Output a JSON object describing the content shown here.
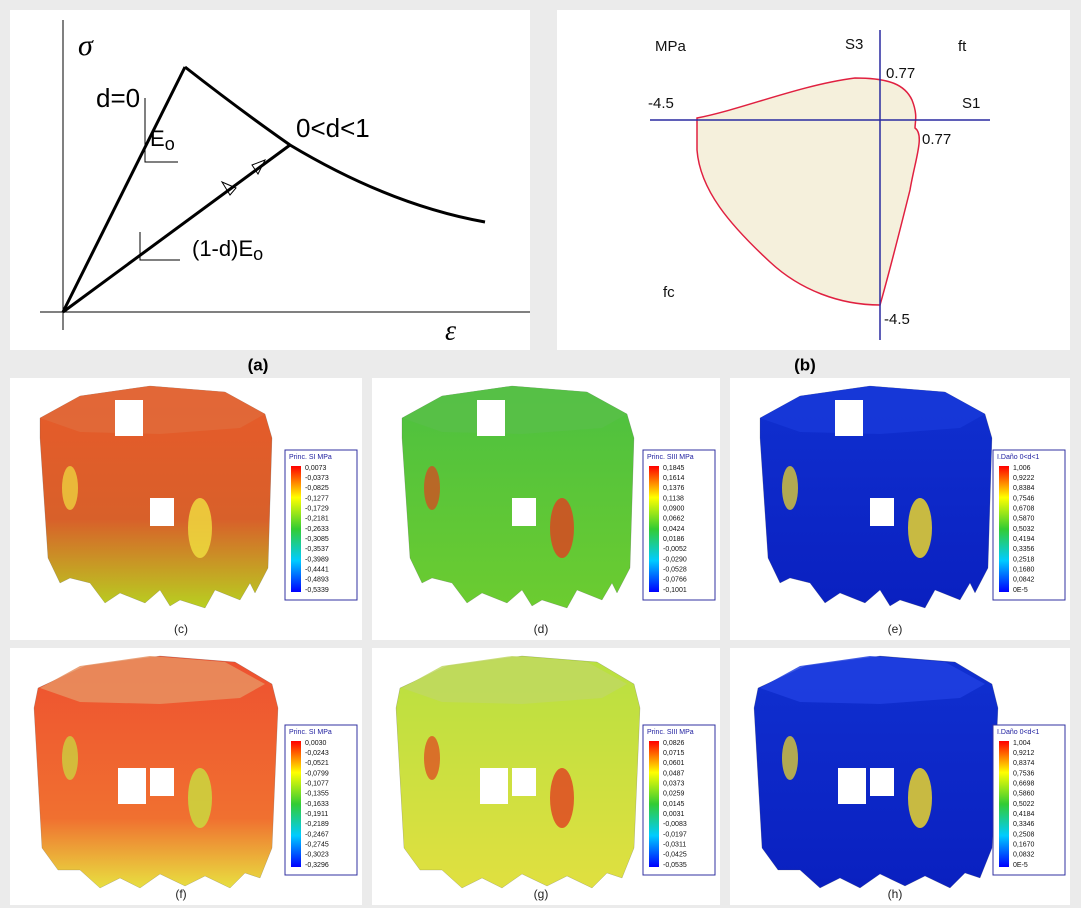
{
  "panel_a": {
    "caption": "(a)",
    "stress_symbol": "σ",
    "strain_symbol": "ε",
    "undamaged": "d=0",
    "modulus": "E",
    "modulus_sub": "o",
    "damaged": "0<d<1",
    "damaged_modulus": "(1-d)E",
    "damaged_modulus_sub": "o"
  },
  "panel_b": {
    "caption": "(b)",
    "unit": "MPa",
    "axis_vertical": "S3",
    "axis_horizontal": "S1",
    "tension_label": "ft",
    "compression_label": "fc",
    "tension_vertical": "0.77",
    "tension_horizontal": "0.77",
    "compression_horizontal": "-4.5",
    "compression_vertical": "-4.5"
  },
  "plots": [
    {
      "caption": "(c)",
      "legend_title": "Princ. SI MPa",
      "legend_values": [
        "0,0073",
        "-0,0373",
        "-0,0825",
        "-0,1277",
        "-0,1729",
        "-0,2181",
        "-0,2633",
        "-0,3085",
        "-0,3537",
        "-0,3989",
        "-0,4441",
        "-0,4893",
        "-0,5339"
      ]
    },
    {
      "caption": "(d)",
      "legend_title": "Princ. SIII MPa",
      "legend_values": [
        "0,1845",
        "0,1614",
        "0,1376",
        "0,1138",
        "0,0900",
        "0,0662",
        "0,0424",
        "0,0186",
        "-0,0052",
        "-0,0290",
        "-0,0528",
        "-0,0766",
        "-0,1001"
      ]
    },
    {
      "caption": "(e)",
      "legend_title": "I.Daño 0<d<1",
      "legend_values": [
        "1,006",
        "0,9222",
        "0,8384",
        "0,7546",
        "0,6708",
        "0,5870",
        "0,5032",
        "0,4194",
        "0,3356",
        "0,2518",
        "0,1680",
        "0,0842",
        "0E-5"
      ]
    },
    {
      "caption": "(f)",
      "legend_title": "Princ. SI MPa",
      "legend_values": [
        "0,0030",
        "-0,0243",
        "-0,0521",
        "-0,0799",
        "-0,1077",
        "-0,1355",
        "-0,1633",
        "-0,1911",
        "-0,2189",
        "-0,2467",
        "-0,2745",
        "-0,3023",
        "-0,3296"
      ]
    },
    {
      "caption": "(g)",
      "legend_title": "Princ. SIII MPa",
      "legend_values": [
        "0,0826",
        "0,0715",
        "0,0601",
        "0,0487",
        "0,0373",
        "0,0259",
        "0,0145",
        "0,0031",
        "-0,0083",
        "-0,0197",
        "-0,0311",
        "-0,0425",
        "-0,0535"
      ]
    },
    {
      "caption": "(h)",
      "legend_title": "I.Daño 0<d<1",
      "legend_values": [
        "1,004",
        "0,9212",
        "0,8374",
        "0,7536",
        "0,6698",
        "0,5860",
        "0,5022",
        "0,4184",
        "0,3346",
        "0,2508",
        "0,1670",
        "0,0832",
        "0E-5"
      ]
    }
  ]
}
